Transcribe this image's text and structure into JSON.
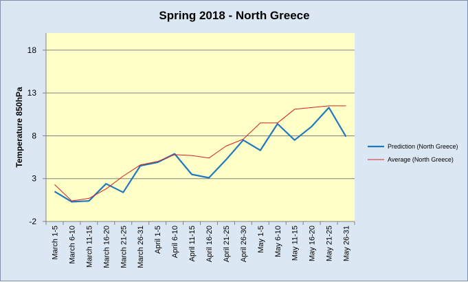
{
  "chart_data": {
    "type": "line",
    "title": "Spring 2018 - North Greece",
    "xlabel": "",
    "ylabel": "Temperature 850hPa",
    "ylim": [
      -2,
      20
    ],
    "yticks": [
      -2,
      3,
      8,
      13,
      18
    ],
    "grid": true,
    "legend_position": "right",
    "categories": [
      "March 1-5",
      "March 6-10",
      "March 11-15",
      "March 16-20",
      "March 21-25",
      "March 26-31",
      "April 1-5",
      "April 6-10",
      "April 11-15",
      "April 16-20",
      "April 21-25",
      "April 26-30",
      "May 1-5",
      "May 6-10",
      "May 11-15",
      "May 16-20",
      "May 21-25",
      "May 26-31"
    ],
    "series": [
      {
        "name": "Prediction (North Greece)",
        "color": "#1f77c0",
        "values": [
          1.5,
          0.3,
          0.4,
          2.4,
          1.4,
          4.5,
          4.9,
          5.9,
          3.5,
          3.1,
          5.2,
          7.5,
          6.3,
          9.4,
          7.5,
          9.1,
          11.3,
          7.9
        ]
      },
      {
        "name": "Average (North Greece)",
        "color": "#d42020",
        "values": [
          2.3,
          0.4,
          0.7,
          1.8,
          3.3,
          4.6,
          5.0,
          5.8,
          5.7,
          5.4,
          6.8,
          7.6,
          9.5,
          9.5,
          11.1,
          11.3,
          11.5,
          11.5
        ]
      }
    ]
  }
}
